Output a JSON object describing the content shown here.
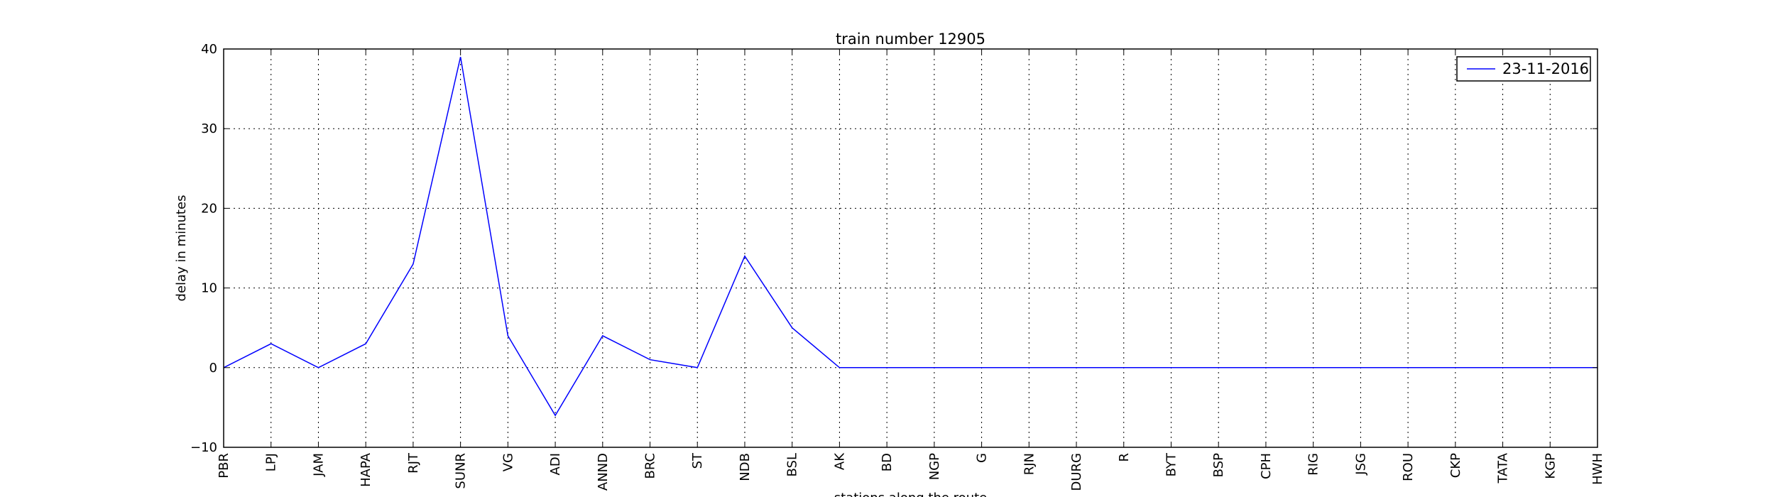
{
  "chart_data": {
    "type": "line",
    "title": "train number 12905",
    "xlabel": "stations along the route",
    "ylabel": "delay in minutes",
    "categories": [
      "PBR",
      "LPJ",
      "JAM",
      "HAPA",
      "RJT",
      "SUNR",
      "VG",
      "ADI",
      "ANND",
      "BRC",
      "ST",
      "NDB",
      "BSL",
      "AK",
      "BD",
      "NGP",
      "G",
      "RJN",
      "DURG",
      "R",
      "BYT",
      "BSP",
      "CPH",
      "RIG",
      "JSG",
      "ROU",
      "CKP",
      "TATA",
      "KGP",
      "HWH"
    ],
    "series": [
      {
        "name": "23-11-2016",
        "color": "#0000ff",
        "values": [
          0,
          3,
          0,
          3,
          13,
          39,
          4,
          -6,
          4,
          1,
          0,
          14,
          5,
          0,
          0,
          0,
          0,
          0,
          0,
          0,
          0,
          0,
          0,
          0,
          0,
          0,
          0,
          0,
          0,
          0
        ]
      }
    ],
    "ylim": [
      -10,
      40
    ],
    "yticks": [
      -10,
      0,
      10,
      20,
      30,
      40
    ],
    "grid": true,
    "legend_position": "top-right"
  }
}
